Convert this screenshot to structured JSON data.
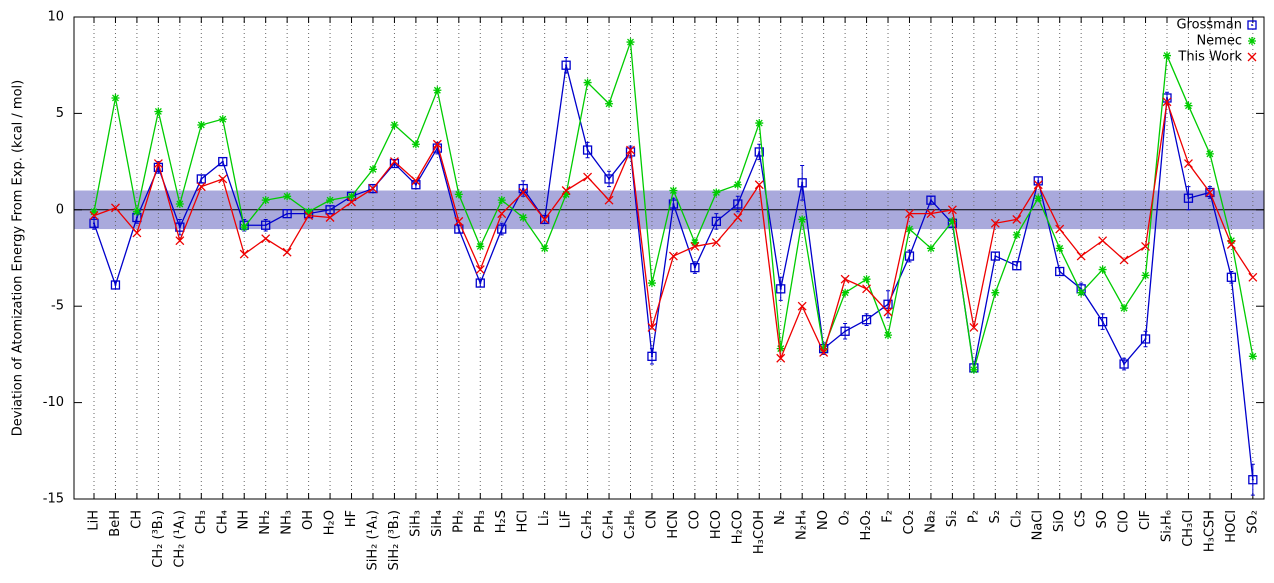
{
  "chart_data": {
    "type": "line",
    "y_label": "Deviation of Atomization Energy From Exp. (kcal / mol)",
    "categories": [
      "LiH",
      "BeH",
      "CH",
      "CH₂ (³B₁)",
      "CH₂ (¹A₁)",
      "CH₃",
      "CH₄",
      "NH",
      "NH₂",
      "NH₃",
      "OH",
      "H₂O",
      "HF",
      "SiH₂ (¹A₁)",
      "SiH₂ (³B₁)",
      "SiH₃",
      "SiH₄",
      "PH₂",
      "PH₃",
      "H₂S",
      "HCl",
      "Li₂",
      "LiF",
      "C₂H₂",
      "C₂H₄",
      "C₂H₆",
      "CN",
      "HCN",
      "CO",
      "HCO",
      "H₂CO",
      "H₃COH",
      "N₂",
      "N₂H₄",
      "NO",
      "O₂",
      "H₂O₂",
      "F₂",
      "CO₂",
      "Na₂",
      "Si₂",
      "P₂",
      "S₂",
      "Cl₂",
      "NaCl",
      "SiO",
      "CS",
      "SO",
      "ClO",
      "ClF",
      "Si₂H₆",
      "CH₃Cl",
      "H₃CSH",
      "HOCl",
      "SO₂"
    ],
    "series": [
      {
        "name": "Grossman",
        "color": "#0000cc",
        "marker": "square",
        "values": [
          -0.7,
          -3.9,
          -0.4,
          2.2,
          -0.9,
          1.6,
          2.5,
          -0.8,
          -0.8,
          -0.2,
          -0.2,
          0.0,
          0.7,
          1.1,
          2.4,
          1.3,
          3.2,
          -1.0,
          -3.8,
          -1.0,
          1.1,
          -0.5,
          7.5,
          3.1,
          1.6,
          3.0,
          -7.6,
          0.3,
          -3.0,
          -0.6,
          0.3,
          3.0,
          -4.1,
          1.4,
          -7.2,
          -6.3,
          -5.7,
          -4.9,
          -2.4,
          0.5,
          -0.7,
          -8.2,
          -2.4,
          -2.9,
          1.5,
          -3.2,
          -4.1,
          -5.8,
          -8.0,
          -6.7,
          5.8,
          0.6,
          0.9,
          -3.5,
          -14.0
        ],
        "errors": [
          0.3,
          0.2,
          0.3,
          0.3,
          0.4,
          0.2,
          0.2,
          0.3,
          0.3,
          0.2,
          0.2,
          0.2,
          0.2,
          0.2,
          0.2,
          0.2,
          0.3,
          0.2,
          0.2,
          0.3,
          0.4,
          0.2,
          0.4,
          0.4,
          0.4,
          0.3,
          0.4,
          0.3,
          0.3,
          0.4,
          0.4,
          0.4,
          0.6,
          0.9,
          0.3,
          0.4,
          0.3,
          0.7,
          0.3,
          0.2,
          0.2,
          0.2,
          0.2,
          0.2,
          0.2,
          0.2,
          0.3,
          0.4,
          0.3,
          0.4,
          0.3,
          0.6,
          0.3,
          0.3,
          0.8
        ]
      },
      {
        "name": "Nemec",
        "color": "#00cc00",
        "marker": "star",
        "values": [
          -0.1,
          5.8,
          -0.1,
          5.1,
          0.3,
          4.4,
          4.7,
          -0.9,
          0.5,
          0.7,
          -0.1,
          0.5,
          0.7,
          2.1,
          4.4,
          3.4,
          6.2,
          0.8,
          -1.9,
          0.5,
          -0.4,
          -2.0,
          0.8,
          6.6,
          5.5,
          8.7,
          -3.8,
          1.0,
          -1.7,
          0.9,
          1.3,
          4.5,
          -7.2,
          -0.5,
          -7.2,
          -4.3,
          -3.6,
          -6.5,
          -1.0,
          -2.0,
          -0.6,
          -8.3,
          -4.3,
          -1.3,
          0.6,
          -2.0,
          -4.3,
          -3.1,
          -5.1,
          -3.4,
          8.0,
          5.4,
          2.9,
          -1.6,
          -7.6
        ]
      },
      {
        "name": "This Work",
        "color": "#ee0000",
        "marker": "cross",
        "values": [
          -0.3,
          0.1,
          -1.2,
          2.4,
          -1.6,
          1.2,
          1.6,
          -2.3,
          -1.5,
          -2.2,
          -0.3,
          -0.4,
          0.4,
          1.1,
          2.5,
          1.5,
          3.4,
          -0.6,
          -3.1,
          -0.2,
          0.9,
          -0.5,
          1.0,
          1.7,
          0.5,
          3.1,
          -6.1,
          -2.4,
          -1.9,
          -1.7,
          -0.4,
          1.3,
          -7.7,
          -5.0,
          -7.4,
          -3.6,
          -4.1,
          -5.3,
          -0.2,
          -0.2,
          0.0,
          -6.1,
          -0.7,
          -0.5,
          1.3,
          -1.0,
          -2.4,
          -1.6,
          -2.6,
          -1.9,
          5.6,
          2.4,
          0.9,
          -1.8,
          -3.5
        ]
      }
    ],
    "band": {
      "range": [
        -1,
        1
      ],
      "color": "#a9a9dc"
    },
    "ylim": [
      -15,
      10
    ],
    "yticks": [
      -15,
      -10,
      -5,
      0,
      5,
      10
    ],
    "grid": "x",
    "legend": "top-right"
  }
}
